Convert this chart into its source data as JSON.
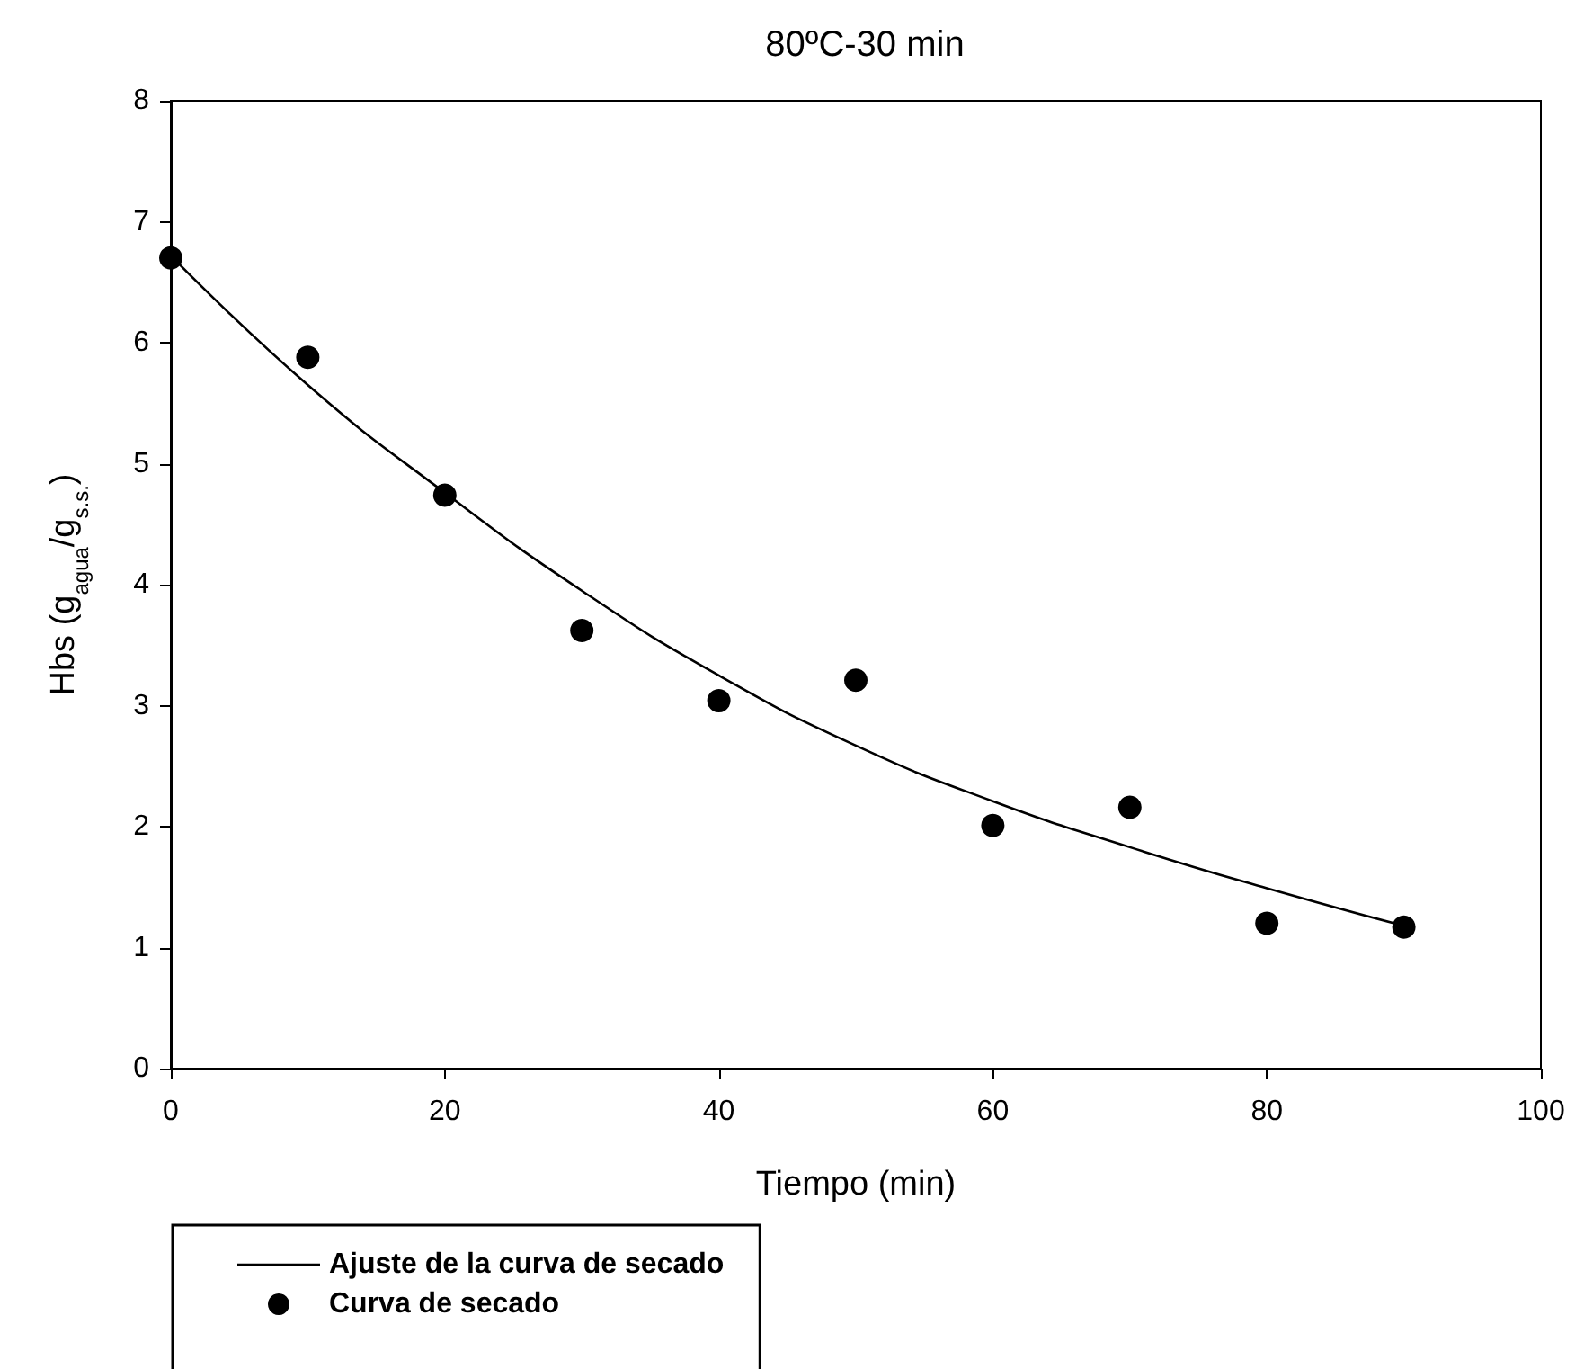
{
  "chart_data": {
    "type": "scatter",
    "title": "80ºC-30 min",
    "xlabel": "Tiempo (min)",
    "ylabel": "Hbs (g$_{agua}$/g$_{s.s.}$)",
    "x": [
      0,
      10,
      20,
      30,
      40,
      50,
      60,
      70,
      80,
      90
    ],
    "series": [
      {
        "name": "Ajuste de la curva de secado",
        "type": "line",
        "color": "#000000",
        "marker": "none",
        "line_style": "solid",
        "values": [
          6.72,
          5.65,
          4.76,
          3.95,
          3.25,
          2.67,
          2.21,
          1.83,
          1.49,
          1.18
        ]
      },
      {
        "name": "Curva de secado",
        "color": "#000000",
        "marker": "circle",
        "values": [
          6.7,
          5.88,
          4.74,
          3.62,
          3.04,
          3.21,
          2.01,
          2.16,
          1.2,
          1.17
        ]
      }
    ],
    "xlim": [
      0,
      100
    ],
    "xticks": [
      0,
      20,
      40,
      60,
      80,
      100
    ],
    "ylim": [
      0,
      8
    ],
    "yticks": [
      0,
      1,
      2,
      3,
      4,
      5,
      6,
      7,
      8
    ],
    "grid": false,
    "legend": "bottom left"
  }
}
